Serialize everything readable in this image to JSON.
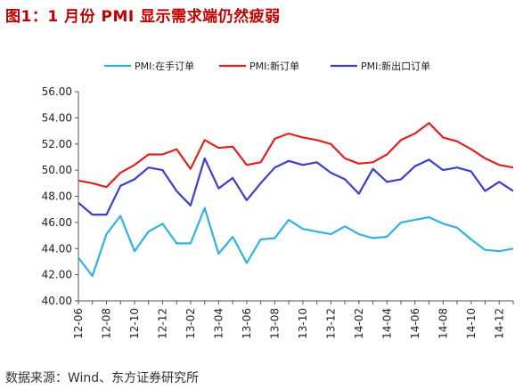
{
  "title": "图1：1 月份 PMI 显示需求端仍然疲弱",
  "source": "数据来源：Wind、东方证券研究所",
  "chart_data": {
    "type": "line",
    "ylim": [
      40,
      56
    ],
    "yticks": [
      "40.00",
      "42.00",
      "44.00",
      "46.00",
      "48.00",
      "50.00",
      "52.00",
      "54.00",
      "56.00"
    ],
    "x": [
      "12-06",
      "12-07",
      "12-08",
      "12-09",
      "12-10",
      "12-11",
      "12-12",
      "13-01",
      "13-02",
      "13-03",
      "13-04",
      "13-05",
      "13-06",
      "13-07",
      "13-08",
      "13-09",
      "13-10",
      "13-11",
      "13-12",
      "14-01",
      "14-02",
      "14-03",
      "14-04",
      "14-05",
      "14-06",
      "14-07",
      "14-08",
      "14-09",
      "14-10",
      "14-11",
      "14-12",
      "15-01"
    ],
    "xtick_labels": [
      "12-06",
      "12-08",
      "12-10",
      "12-12",
      "13-02",
      "13-04",
      "13-06",
      "13-08",
      "13-10",
      "13-12",
      "14-02",
      "14-04",
      "14-06",
      "14-08",
      "14-10",
      "14-12"
    ],
    "legend_position": "top",
    "grid": false,
    "series": [
      {
        "name": "PMI:在手订单",
        "color": "#2eb3e0",
        "values": [
          43.3,
          41.9,
          45.1,
          46.5,
          43.8,
          45.3,
          45.9,
          44.4,
          44.4,
          47.1,
          43.6,
          44.9,
          42.9,
          44.7,
          44.8,
          46.2,
          45.5,
          45.3,
          45.1,
          45.7,
          45.1,
          44.8,
          44.9,
          46.0,
          46.2,
          46.4,
          45.9,
          45.6,
          44.7,
          43.9,
          43.8,
          44.0
        ]
      },
      {
        "name": "PMI:新订单",
        "color": "#e02020",
        "values": [
          49.2,
          49.0,
          48.7,
          49.8,
          50.4,
          51.2,
          51.2,
          51.6,
          50.1,
          52.3,
          51.7,
          51.8,
          50.4,
          50.6,
          52.4,
          52.8,
          52.5,
          52.3,
          52.0,
          50.9,
          50.5,
          50.6,
          51.2,
          52.3,
          52.8,
          53.6,
          52.5,
          52.2,
          51.6,
          50.9,
          50.4,
          50.2
        ]
      },
      {
        "name": "PMI:新出口订单",
        "color": "#3d3dcc",
        "values": [
          47.5,
          46.6,
          46.6,
          48.8,
          49.3,
          50.2,
          50.0,
          48.4,
          47.3,
          50.9,
          48.6,
          49.4,
          47.7,
          49.0,
          50.2,
          50.7,
          50.4,
          50.6,
          49.8,
          49.3,
          48.2,
          50.1,
          49.1,
          49.3,
          50.3,
          50.8,
          50.0,
          50.2,
          49.9,
          48.4,
          49.1,
          48.4
        ]
      }
    ]
  }
}
